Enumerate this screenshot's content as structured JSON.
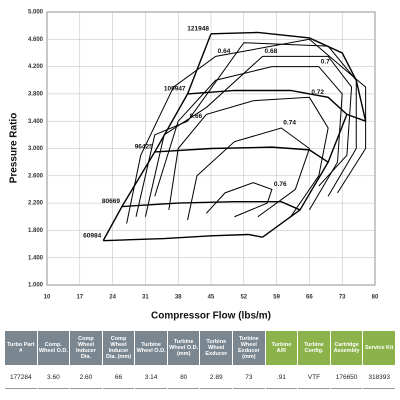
{
  "chart_data": {
    "type": "line",
    "xlabel": "Compressor Flow (lbs/m)",
    "ylabel": "Pressure Ratio",
    "xlim": [
      10,
      80
    ],
    "xticks": [
      10,
      17,
      24,
      31,
      38,
      45,
      52,
      59,
      66,
      73,
      80
    ],
    "ylim": [
      1,
      5
    ],
    "yticks": [
      {
        "value": 1,
        "label": "1.000"
      },
      {
        "value": 1.4,
        "label": "1.400"
      },
      {
        "value": 1.8,
        "label": "1.800"
      },
      {
        "value": 2.2,
        "label": "2.200"
      },
      {
        "value": 2.6,
        "label": "2.600"
      },
      {
        "value": 3,
        "label": "3.000"
      },
      {
        "value": 3.4,
        "label": "3.400"
      },
      {
        "value": 3.8,
        "label": "3.800"
      },
      {
        "value": 4.2,
        "label": "4.200"
      },
      {
        "value": 4.6,
        "label": "4.600"
      },
      {
        "value": 5,
        "label": "5.000"
      }
    ],
    "grid": true,
    "color": "#000000",
    "series": [
      {
        "name": "60984",
        "x": [
          22,
          35,
          45,
          53,
          56
        ],
        "y": [
          1.65,
          1.68,
          1.72,
          1.74,
          1.7
        ]
      },
      {
        "name": "80669",
        "x": [
          26,
          38,
          50,
          60,
          64
        ],
        "y": [
          2.15,
          2.2,
          2.22,
          2.22,
          2.1
        ]
      },
      {
        "name": "96425",
        "x": [
          33,
          45,
          58,
          66,
          70
        ],
        "y": [
          2.95,
          3.0,
          3.02,
          2.98,
          2.8
        ]
      },
      {
        "name": "109947",
        "x": [
          40,
          50,
          62,
          70,
          74
        ],
        "y": [
          3.8,
          3.85,
          3.85,
          3.75,
          3.5
        ]
      },
      {
        "name": "121948",
        "x": [
          45,
          55,
          66,
          73,
          76,
          78
        ],
        "y": [
          4.68,
          4.7,
          4.62,
          4.4,
          4.0,
          3.4
        ]
      }
    ],
    "efficiency": [
      {
        "name": "0.76",
        "x": [
          44,
          48,
          54,
          58,
          57,
          50
        ],
        "y": [
          2.05,
          2.35,
          2.5,
          2.4,
          2.2,
          2.0
        ]
      },
      {
        "name": "0.74",
        "x": [
          40,
          42,
          50,
          60,
          66,
          63,
          55
        ],
        "y": [
          1.95,
          2.6,
          3.1,
          3.3,
          3.0,
          2.4,
          2.0
        ]
      },
      {
        "name": "0.72",
        "x": [
          36,
          38,
          44,
          54,
          66,
          70,
          68,
          62
        ],
        "y": [
          2.1,
          3.0,
          3.5,
          3.7,
          3.75,
          3.3,
          2.6,
          2.0
        ]
      },
      {
        "name": "0.7",
        "x": [
          33,
          38,
          46,
          58,
          68,
          73,
          72,
          66
        ],
        "y": [
          2.3,
          3.4,
          4.0,
          4.2,
          4.2,
          3.8,
          2.8,
          2.1
        ]
      },
      {
        "name": "0.68",
        "x": [
          31,
          35,
          44,
          56,
          70,
          75,
          74,
          68
        ],
        "y": [
          2.0,
          3.2,
          3.6,
          4.35,
          4.35,
          3.9,
          2.9,
          2.45
        ]
      },
      {
        "name": "0.66",
        "x": [
          29,
          33,
          40,
          52,
          70,
          76,
          76,
          70
        ],
        "y": [
          2.0,
          3.2,
          3.4,
          4.55,
          4.5,
          4.0,
          3.0,
          2.3
        ]
      },
      {
        "name": "0.64",
        "x": [
          27,
          30,
          37,
          46,
          66,
          78,
          78,
          72
        ],
        "y": [
          1.9,
          2.9,
          3.9,
          4.35,
          4.6,
          3.9,
          3.0,
          2.35
        ]
      }
    ]
  },
  "table": {
    "header": [
      "Turbo Part #",
      "Comp. Wheel O.D.",
      "Comp Wheel Inducer Dia.",
      "Comp Wheel Inducer Dia. (mm)",
      "Turbine Wheel O.D.",
      "Turbine Wheel O.D. (mm)",
      "Turbine Wheel Exducer",
      "Turbine Wheel Exducer (mm)",
      "Turbine A/R",
      "Turbine Config.",
      "Cartridge Assembly",
      "Service Kit"
    ],
    "rows": [
      [
        "177284",
        "3.60",
        "2.60",
        "66",
        "3.14",
        "80",
        "2.89",
        "73",
        ".91",
        "VTF",
        "176650",
        "318393"
      ]
    ]
  }
}
